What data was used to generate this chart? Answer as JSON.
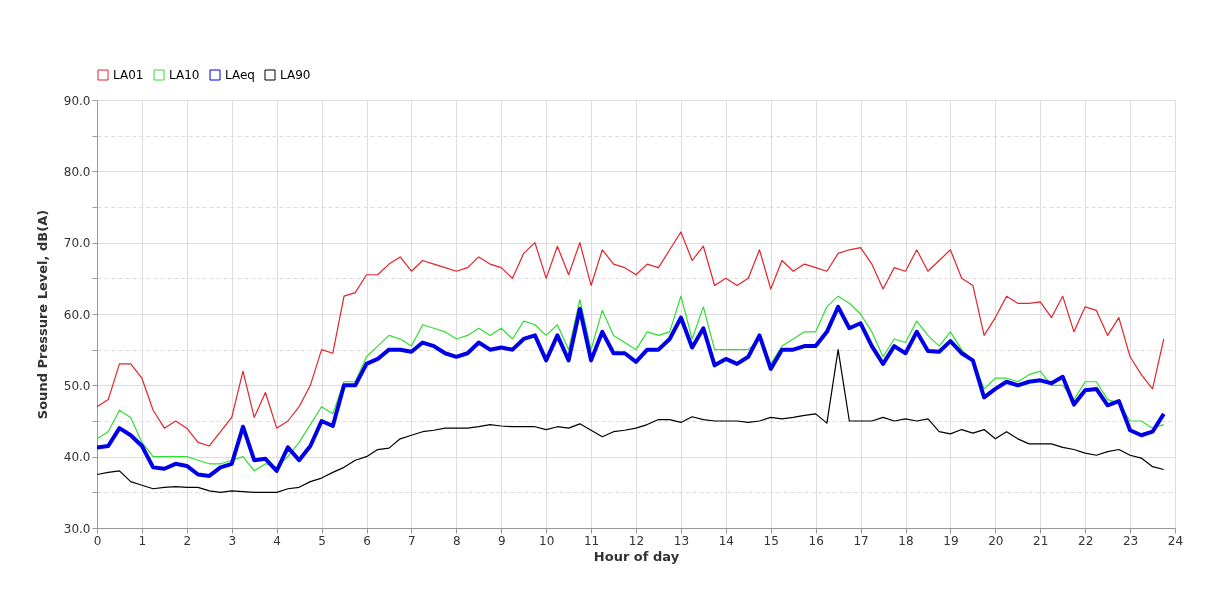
{
  "chart_data": {
    "type": "line",
    "xlabel": "Hour of day",
    "ylabel": "Sound Pressure Level, dB(A)",
    "x": [
      0,
      0.25,
      0.5,
      0.75,
      1,
      1.25,
      1.5,
      1.75,
      2,
      2.25,
      2.5,
      2.75,
      3,
      3.25,
      3.5,
      3.75,
      4,
      4.25,
      4.5,
      4.75,
      5,
      5.25,
      5.5,
      5.75,
      6,
      6.25,
      6.5,
      6.75,
      7,
      7.25,
      7.5,
      7.75,
      8,
      8.25,
      8.5,
      8.75,
      9,
      9.25,
      9.5,
      9.75,
      10,
      10.25,
      10.5,
      10.75,
      11,
      11.25,
      11.5,
      11.75,
      12,
      12.25,
      12.5,
      12.75,
      13,
      13.25,
      13.5,
      13.75,
      14,
      14.25,
      14.5,
      14.75,
      15,
      15.25,
      15.5,
      15.75,
      16,
      16.25,
      16.5,
      16.75,
      17,
      17.25,
      17.5,
      17.75,
      18,
      18.25,
      18.5,
      18.75,
      19,
      19.25,
      19.5,
      19.75,
      20,
      20.25,
      20.5,
      20.75,
      21,
      21.25,
      21.5,
      21.75,
      22,
      22.25,
      22.5,
      22.75,
      23,
      23.25,
      23.5,
      23.75
    ],
    "series": [
      {
        "name": "LA01",
        "color": "#e3242b",
        "values": [
          47,
          48,
          53,
          53,
          51,
          46.5,
          44,
          45,
          44,
          42,
          41.5,
          43.5,
          45.5,
          52,
          45.5,
          49,
          44,
          45,
          47,
          50,
          55,
          54.5,
          62.5,
          63,
          65.5,
          65.5,
          67,
          68,
          66,
          67.5,
          67,
          66.5,
          66,
          66.5,
          68,
          67,
          66.5,
          65,
          68.5,
          70,
          65,
          69.5,
          65.5,
          70,
          64,
          69,
          67,
          66.5,
          65.5,
          67,
          66.5,
          69,
          71.5,
          67.5,
          69.5,
          64,
          65,
          64,
          65,
          69,
          63.5,
          67.5,
          66,
          67,
          66.5,
          66,
          68.5,
          69,
          69.3,
          67,
          63.5,
          66.5,
          66,
          69,
          66,
          67.5,
          69,
          65,
          64,
          57,
          59.5,
          62.5,
          61.5,
          61.5,
          61.7,
          59.5,
          62.5,
          57.5,
          61,
          60.5,
          57,
          59.5,
          54,
          51.5,
          49.5,
          56.5
        ]
      },
      {
        "name": "LA10",
        "color": "#33dd33",
        "values": [
          42.5,
          43.5,
          46.5,
          45.5,
          42,
          40,
          40,
          40,
          40,
          39.5,
          39,
          39,
          39.5,
          40,
          38,
          39,
          38.5,
          40,
          42,
          44.5,
          47,
          46,
          50.5,
          50.5,
          54,
          55.5,
          57,
          56.5,
          55.5,
          58.5,
          58,
          57.5,
          56.5,
          57,
          58,
          57,
          58,
          56.5,
          59,
          58.5,
          57,
          58.5,
          55,
          62,
          55,
          60.5,
          57,
          56,
          55,
          57.5,
          57,
          57.5,
          62.5,
          56.5,
          61,
          55,
          55,
          55,
          55,
          56.5,
          53,
          55.5,
          56.5,
          57.5,
          57.5,
          61,
          62.5,
          61.5,
          60,
          57.5,
          54,
          56.5,
          56,
          59,
          57,
          55.5,
          57.5,
          55,
          53.5,
          49.5,
          51,
          51,
          50.5,
          51.5,
          52,
          50,
          50,
          48,
          50.5,
          50.5,
          48,
          47.5,
          45,
          45,
          44,
          44.5
        ]
      },
      {
        "name": "LAeq",
        "color": "#0000e6",
        "values": [
          41.3,
          41.5,
          44,
          43,
          41.5,
          38.5,
          38.3,
          39,
          38.7,
          37.5,
          37.3,
          38.5,
          39,
          44.2,
          39.5,
          39.7,
          38,
          41.3,
          39.5,
          41.5,
          45,
          44.3,
          50,
          50,
          53,
          53.7,
          55,
          55,
          54.7,
          56,
          55.5,
          54.5,
          54,
          54.5,
          56,
          55,
          55.3,
          55,
          56.5,
          57,
          53.5,
          57,
          53.5,
          60.7,
          53.5,
          57.5,
          54.5,
          54.5,
          53.3,
          55,
          55,
          56.5,
          59.5,
          55.3,
          58,
          52.8,
          53.7,
          53,
          54,
          57,
          52.3,
          55,
          55,
          55.5,
          55.5,
          57.5,
          61,
          58,
          58.7,
          55.5,
          53,
          55.5,
          54.5,
          57.5,
          54.8,
          54.7,
          56.2,
          54.5,
          53.5,
          48.3,
          49.5,
          50.5,
          50,
          50.5,
          50.7,
          50.3,
          51.2,
          47.3,
          49.3,
          49.5,
          47.2,
          47.8,
          43.7,
          43,
          43.5,
          46
        ]
      },
      {
        "name": "LA90",
        "color": "#000000",
        "values": [
          37.5,
          37.8,
          38,
          36.5,
          36,
          35.5,
          35.7,
          35.8,
          35.7,
          35.7,
          35.2,
          35,
          35.2,
          35.1,
          35,
          35,
          35,
          35.5,
          35.7,
          36.5,
          37,
          37.8,
          38.5,
          39.5,
          40,
          41,
          41.2,
          42.5,
          43,
          43.5,
          43.7,
          44,
          44,
          44,
          44.2,
          44.5,
          44.3,
          44.2,
          44.2,
          44.2,
          43.8,
          44.2,
          44,
          44.6,
          43.7,
          42.8,
          43.5,
          43.7,
          44,
          44.5,
          45.2,
          45.2,
          44.8,
          45.6,
          45.2,
          45,
          45,
          45,
          44.8,
          45,
          45.5,
          45.3,
          45.5,
          45.8,
          46,
          44.7,
          55,
          45,
          45,
          45,
          45.5,
          45,
          45.3,
          45,
          45.3,
          43.5,
          43.2,
          43.8,
          43.3,
          43.8,
          42.5,
          43.5,
          42.5,
          41.8,
          41.8,
          41.8,
          41.3,
          41,
          40.5,
          40.2,
          40.7,
          41,
          40.2,
          39.8,
          38.6,
          38.2
        ]
      }
    ],
    "xlim": [
      0,
      24
    ],
    "xticks": [
      0,
      1,
      2,
      3,
      4,
      5,
      6,
      7,
      8,
      9,
      10,
      11,
      12,
      13,
      14,
      15,
      16,
      17,
      18,
      19,
      20,
      21,
      22,
      23,
      24
    ],
    "ylim": [
      30,
      90
    ],
    "yticks": [
      {
        "value": 30,
        "label": "30.0"
      },
      {
        "value": 35,
        "label": null
      },
      {
        "value": 40,
        "label": "40.0"
      },
      {
        "value": 45,
        "label": null
      },
      {
        "value": 50,
        "label": "50.0"
      },
      {
        "value": 55,
        "label": null
      },
      {
        "value": 60,
        "label": "60.0"
      },
      {
        "value": 65,
        "label": null
      },
      {
        "value": 70,
        "label": "70.0"
      },
      {
        "value": 75,
        "label": null
      },
      {
        "value": 80,
        "label": "80.0"
      },
      {
        "value": 85,
        "label": null
      },
      {
        "value": 90,
        "label": "90.0"
      }
    ],
    "grid": true,
    "legend": "top",
    "marker": "none",
    "line_style": "solid"
  }
}
